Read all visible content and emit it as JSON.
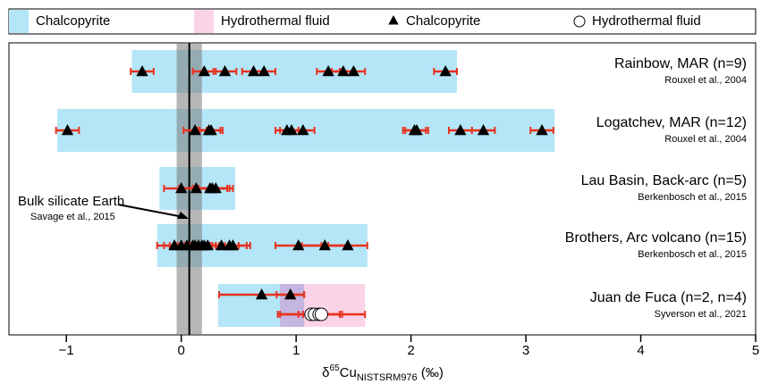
{
  "chart_data": {
    "type": "range-dot",
    "legend": [
      {
        "label": "Chalcopyrite",
        "kind": "range",
        "color": "#b4e6f8"
      },
      {
        "label": "Hydrothermal fluid",
        "kind": "range",
        "color": "#fbd3e7"
      },
      {
        "label": "Chalcopyrite",
        "kind": "triangle",
        "color": "#000000"
      },
      {
        "label": "Hydrothermal fluid",
        "kind": "circle",
        "color": "#ffffff"
      }
    ],
    "error_color": "#e8321e",
    "xlim": [
      -1.5,
      5
    ],
    "xticks": [
      {
        "value": -1,
        "label": "−1"
      },
      0,
      1,
      2,
      3,
      4,
      5
    ],
    "x_label": {
      "prefix": "δ",
      "sup": "65",
      "main": "Cu",
      "sub": "NISTSRM976",
      "suffix": " (‰)"
    },
    "bse": {
      "value": 0.07,
      "band": [
        -0.04,
        0.18
      ],
      "label": "Bulk silicate Earth",
      "reference": "Savage et al., 2015"
    },
    "groups": [
      {
        "label": "Rainbow, MAR (n=9)",
        "reference": "Rouxel et al., 2004",
        "chalcopyrite_range": [
          -0.43,
          2.4
        ],
        "chalcopyrite": [
          -0.34,
          0.2,
          0.38,
          0.63,
          0.72,
          1.28,
          1.41,
          1.5,
          2.3
        ],
        "chalcopyrite_error": [
          0.1,
          0.1,
          0.1,
          0.1,
          0.1,
          0.1,
          0.1,
          0.1,
          0.1
        ]
      },
      {
        "label": "Logatchev, MAR (n=12)",
        "reference": "Rouxel et al., 2004",
        "chalcopyrite_range": [
          -1.08,
          3.25
        ],
        "chalcopyrite": [
          -0.99,
          0.12,
          0.24,
          0.26,
          0.92,
          0.96,
          1.06,
          2.03,
          2.05,
          2.43,
          2.63,
          3.14
        ],
        "chalcopyrite_error": [
          0.1,
          0.1,
          0.1,
          0.1,
          0.1,
          0.1,
          0.1,
          0.1,
          0.1,
          0.1,
          0.1,
          0.1
        ]
      },
      {
        "label": "Lau Basin, Back-arc (n=5)",
        "reference": "Berkenbosch et al., 2015",
        "chalcopyrite_range": [
          -0.19,
          0.47
        ],
        "chalcopyrite": [
          0.0,
          0.13,
          0.25,
          0.27,
          0.3
        ],
        "chalcopyrite_error": [
          0.15,
          0.15,
          0.15,
          0.15,
          0.15
        ]
      },
      {
        "label": "Brothers, Arc volcano (n=15)",
        "reference": "Berkenbosch et al., 2015",
        "chalcopyrite_range": [
          -0.21,
          1.62
        ],
        "chalcopyrite": [
          -0.06,
          0.0,
          0.05,
          0.1,
          0.12,
          0.15,
          0.18,
          0.2,
          0.23,
          0.35,
          0.42,
          0.45,
          1.02,
          1.25,
          1.45
        ],
        "chalcopyrite_error": [
          0.15,
          0.15,
          0.15,
          0.15,
          0.15,
          0.15,
          0.15,
          0.15,
          0.15,
          0.15,
          0.15,
          0.15,
          0.2,
          0.2,
          0.17
        ]
      },
      {
        "label": "Juan de Fuca (n=2, n=4)",
        "reference": "Syverson et al., 2021",
        "chalcopyrite_range": [
          0.32,
          1.07
        ],
        "chalcopyrite": [
          0.7,
          0.95
        ],
        "chalcopyrite_error": [
          0.37,
          0.12
        ],
        "fluid_range": [
          0.86,
          1.6
        ],
        "fluid": [
          1.13,
          1.16,
          1.2,
          1.22
        ],
        "fluid_error": [
          0.27,
          0.1,
          0.18,
          0.38
        ]
      }
    ]
  }
}
